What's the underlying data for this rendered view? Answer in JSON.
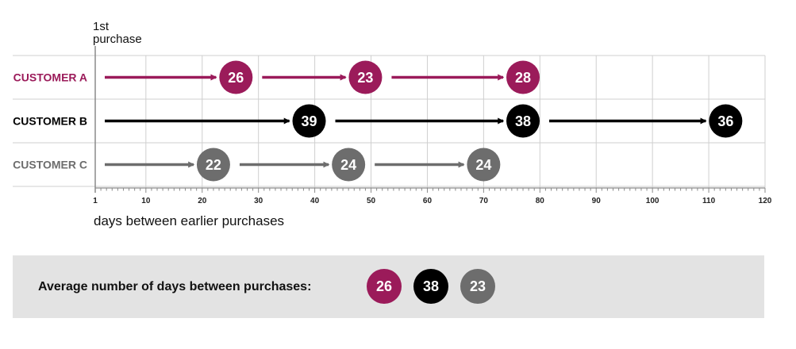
{
  "start_label": [
    "1st",
    "purchase"
  ],
  "chart_data": {
    "type": "timeline",
    "x_axis": {
      "label": "days between earlier purchases",
      "range": [
        1,
        120
      ],
      "ticks": [
        1,
        10,
        20,
        30,
        40,
        50,
        60,
        70,
        80,
        90,
        100,
        110,
        120
      ]
    },
    "grid": true,
    "series": [
      {
        "name": "CUSTOMER A",
        "color": "#9b1b5a",
        "intervals": [
          26,
          23,
          28
        ],
        "purchase_days": [
          26,
          49,
          77
        ]
      },
      {
        "name": "CUSTOMER B",
        "color": "#000000",
        "intervals": [
          39,
          38,
          36
        ],
        "purchase_days": [
          39,
          77,
          113
        ]
      },
      {
        "name": "CUSTOMER C",
        "color": "#6d6d6d",
        "intervals": [
          22,
          24,
          24
        ],
        "purchase_days": [
          22,
          46,
          70
        ]
      }
    ]
  },
  "average": {
    "label": "Average number of days between purchases:",
    "values": [
      {
        "value": "26",
        "color": "#9b1b5a"
      },
      {
        "value": "38",
        "color": "#000000"
      },
      {
        "value": "23",
        "color": "#6d6d6d"
      }
    ]
  }
}
